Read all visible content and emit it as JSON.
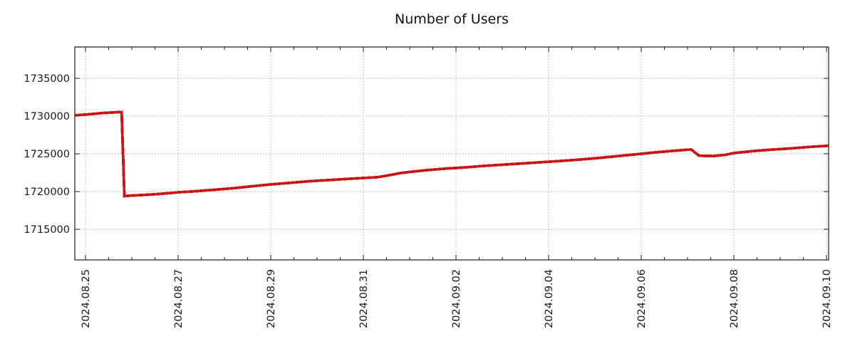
{
  "chart_data": {
    "type": "line",
    "title": "Number of Users",
    "xlabel": "",
    "ylabel": "",
    "legend": "none",
    "grid": "dotted",
    "y_ticks": [
      1715000,
      1720000,
      1725000,
      1730000,
      1735000
    ],
    "y_range": [
      1710950,
      1739150
    ],
    "x_range_days": [
      -0.2308,
      16.0462
    ],
    "x_tick_minor_step_days": 0.5,
    "x_ticks_major": [
      {
        "day": 0,
        "label": "2024.08.25"
      },
      {
        "day": 2,
        "label": "2024.08.27"
      },
      {
        "day": 4,
        "label": "2024.08.29"
      },
      {
        "day": 6,
        "label": "2024.08.31"
      },
      {
        "day": 8,
        "label": "2024.09.02"
      },
      {
        "day": 10,
        "label": "2024.09.04"
      },
      {
        "day": 12,
        "label": "2024.09.06"
      },
      {
        "day": 14,
        "label": "2024.09.08"
      },
      {
        "day": 16,
        "label": "2024.09.10"
      }
    ],
    "series": [
      {
        "name": "Number of Users",
        "color": "#cc1515",
        "points_day_value": [
          [
            -0.23,
            1730100
          ],
          [
            0.0,
            1730200
          ],
          [
            0.2,
            1730300
          ],
          [
            0.35,
            1730400
          ],
          [
            0.6,
            1730480
          ],
          [
            0.72,
            1730520
          ],
          [
            0.78,
            1730530
          ],
          [
            0.84,
            1719400
          ],
          [
            1.0,
            1719480
          ],
          [
            1.3,
            1719560
          ],
          [
            1.6,
            1719680
          ],
          [
            2.0,
            1719900
          ],
          [
            2.4,
            1720050
          ],
          [
            2.8,
            1720250
          ],
          [
            3.2,
            1720450
          ],
          [
            3.6,
            1720700
          ],
          [
            4.0,
            1720950
          ],
          [
            4.4,
            1721150
          ],
          [
            4.8,
            1721350
          ],
          [
            5.2,
            1721500
          ],
          [
            5.6,
            1721650
          ],
          [
            6.0,
            1721800
          ],
          [
            6.3,
            1721900
          ],
          [
            6.55,
            1722150
          ],
          [
            6.8,
            1722450
          ],
          [
            7.0,
            1722600
          ],
          [
            7.4,
            1722850
          ],
          [
            7.8,
            1723050
          ],
          [
            8.2,
            1723200
          ],
          [
            8.6,
            1723400
          ],
          [
            9.0,
            1723550
          ],
          [
            9.5,
            1723750
          ],
          [
            10.0,
            1723950
          ],
          [
            10.5,
            1724150
          ],
          [
            11.0,
            1724400
          ],
          [
            11.5,
            1724700
          ],
          [
            12.0,
            1725000
          ],
          [
            12.4,
            1725250
          ],
          [
            12.8,
            1725450
          ],
          [
            13.0,
            1725550
          ],
          [
            13.08,
            1725560
          ],
          [
            13.25,
            1724750
          ],
          [
            13.55,
            1724700
          ],
          [
            13.8,
            1724850
          ],
          [
            14.0,
            1725100
          ],
          [
            14.4,
            1725350
          ],
          [
            14.8,
            1725550
          ],
          [
            15.2,
            1725700
          ],
          [
            15.6,
            1725900
          ],
          [
            16.0,
            1726050
          ],
          [
            16.05,
            1726100
          ]
        ]
      }
    ]
  },
  "colors": {
    "line": "#cc1515",
    "grid": "#a8a8a8",
    "spine": "#1a1a1a",
    "text": "#1a1a1a",
    "background": "#ffffff"
  }
}
